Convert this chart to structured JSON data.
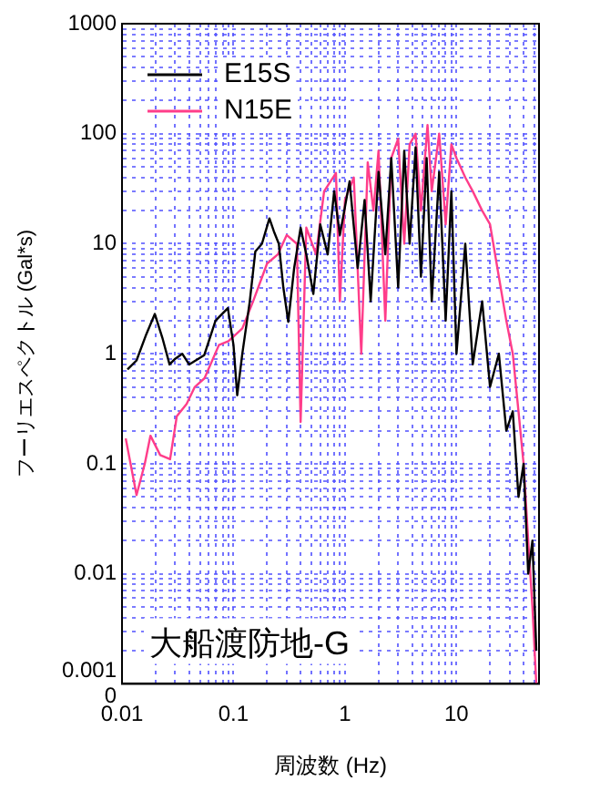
{
  "chart_data": {
    "type": "line",
    "xlabel": "周波数 (Hz)",
    "ylabel": "フーリエスペクトル (Gal*s)",
    "annotations": [
      "大船渡防地-G"
    ],
    "log": "xy",
    "grid": true,
    "legend": "top left",
    "marker": "none",
    "line_style": "solid",
    "xlim": [
      0.01,
      55
    ],
    "xticks": [
      0.01,
      0.1,
      1,
      10
    ],
    "ylim": [
      0.001,
      1000
    ],
    "yticks": [
      {
        "value": 0.001,
        "label": "0.001\n0"
      },
      0.01,
      0.1,
      1,
      10,
      100,
      1000
    ],
    "series": [
      {
        "name": "E15S",
        "color": "#000000",
        "x": [
          0.0112,
          0.0135,
          0.0165,
          0.0197,
          0.023,
          0.0267,
          0.03,
          0.0347,
          0.04,
          0.0546,
          0.069,
          0.089,
          0.1,
          0.108,
          0.12,
          0.14,
          0.157,
          0.18,
          0.21,
          0.23,
          0.255,
          0.28,
          0.31,
          0.35,
          0.4,
          0.45,
          0.52,
          0.6,
          0.7,
          0.8,
          0.9,
          1.1,
          1.3,
          1.5,
          1.7,
          2,
          2.3,
          2.6,
          3,
          3.4,
          3.8,
          4.3,
          4.8,
          5.4,
          6,
          7,
          8,
          9,
          10,
          12,
          14,
          17,
          20,
          24,
          28,
          32,
          36,
          40,
          44,
          48,
          52
        ],
        "values": [
          0.72,
          0.87,
          1.5,
          2.3,
          1.4,
          0.8,
          0.9,
          1.0,
          0.8,
          0.97,
          2.0,
          2.6,
          1.2,
          0.42,
          1.0,
          3,
          8.5,
          10,
          17,
          13,
          10,
          4,
          1.95,
          6,
          14,
          8,
          3.5,
          15,
          8,
          30,
          12,
          37,
          6,
          25,
          3,
          45,
          8,
          60,
          4,
          70,
          10,
          75,
          5,
          60,
          3,
          45,
          2,
          30,
          1,
          10,
          0.8,
          3,
          0.5,
          1,
          0.2,
          0.3,
          0.05,
          0.1,
          0.01,
          0.02,
          0.002
        ]
      },
      {
        "name": "N15E",
        "color": "#ff3d8a",
        "x": [
          0.0108,
          0.0135,
          0.016,
          0.018,
          0.022,
          0.027,
          0.031,
          0.038,
          0.045,
          0.055,
          0.074,
          0.09,
          0.12,
          0.15,
          0.2,
          0.25,
          0.3,
          0.37,
          0.4,
          0.45,
          0.55,
          0.65,
          0.83,
          0.9,
          1,
          1.2,
          1.4,
          1.6,
          1.8,
          2,
          2.3,
          2.6,
          3,
          3.4,
          3.8,
          4.3,
          4.8,
          5.5,
          6,
          7,
          8,
          9,
          10,
          12,
          14,
          17,
          20,
          24,
          28,
          32,
          36,
          40,
          44,
          48,
          52
        ],
        "values": [
          0.17,
          0.052,
          0.1,
          0.18,
          0.12,
          0.11,
          0.27,
          0.35,
          0.5,
          0.6,
          1.2,
          1.3,
          1.7,
          3,
          6.6,
          8,
          12,
          10,
          0.24,
          14,
          8,
          30,
          44,
          3,
          25,
          40,
          1,
          55,
          20,
          70,
          2,
          60,
          90,
          10,
          80,
          100,
          20,
          120,
          30,
          100,
          15,
          80,
          60,
          40,
          30,
          20,
          15,
          5,
          2,
          1,
          0.3,
          0.1,
          0.02,
          0.005,
          0.001
        ]
      }
    ]
  }
}
